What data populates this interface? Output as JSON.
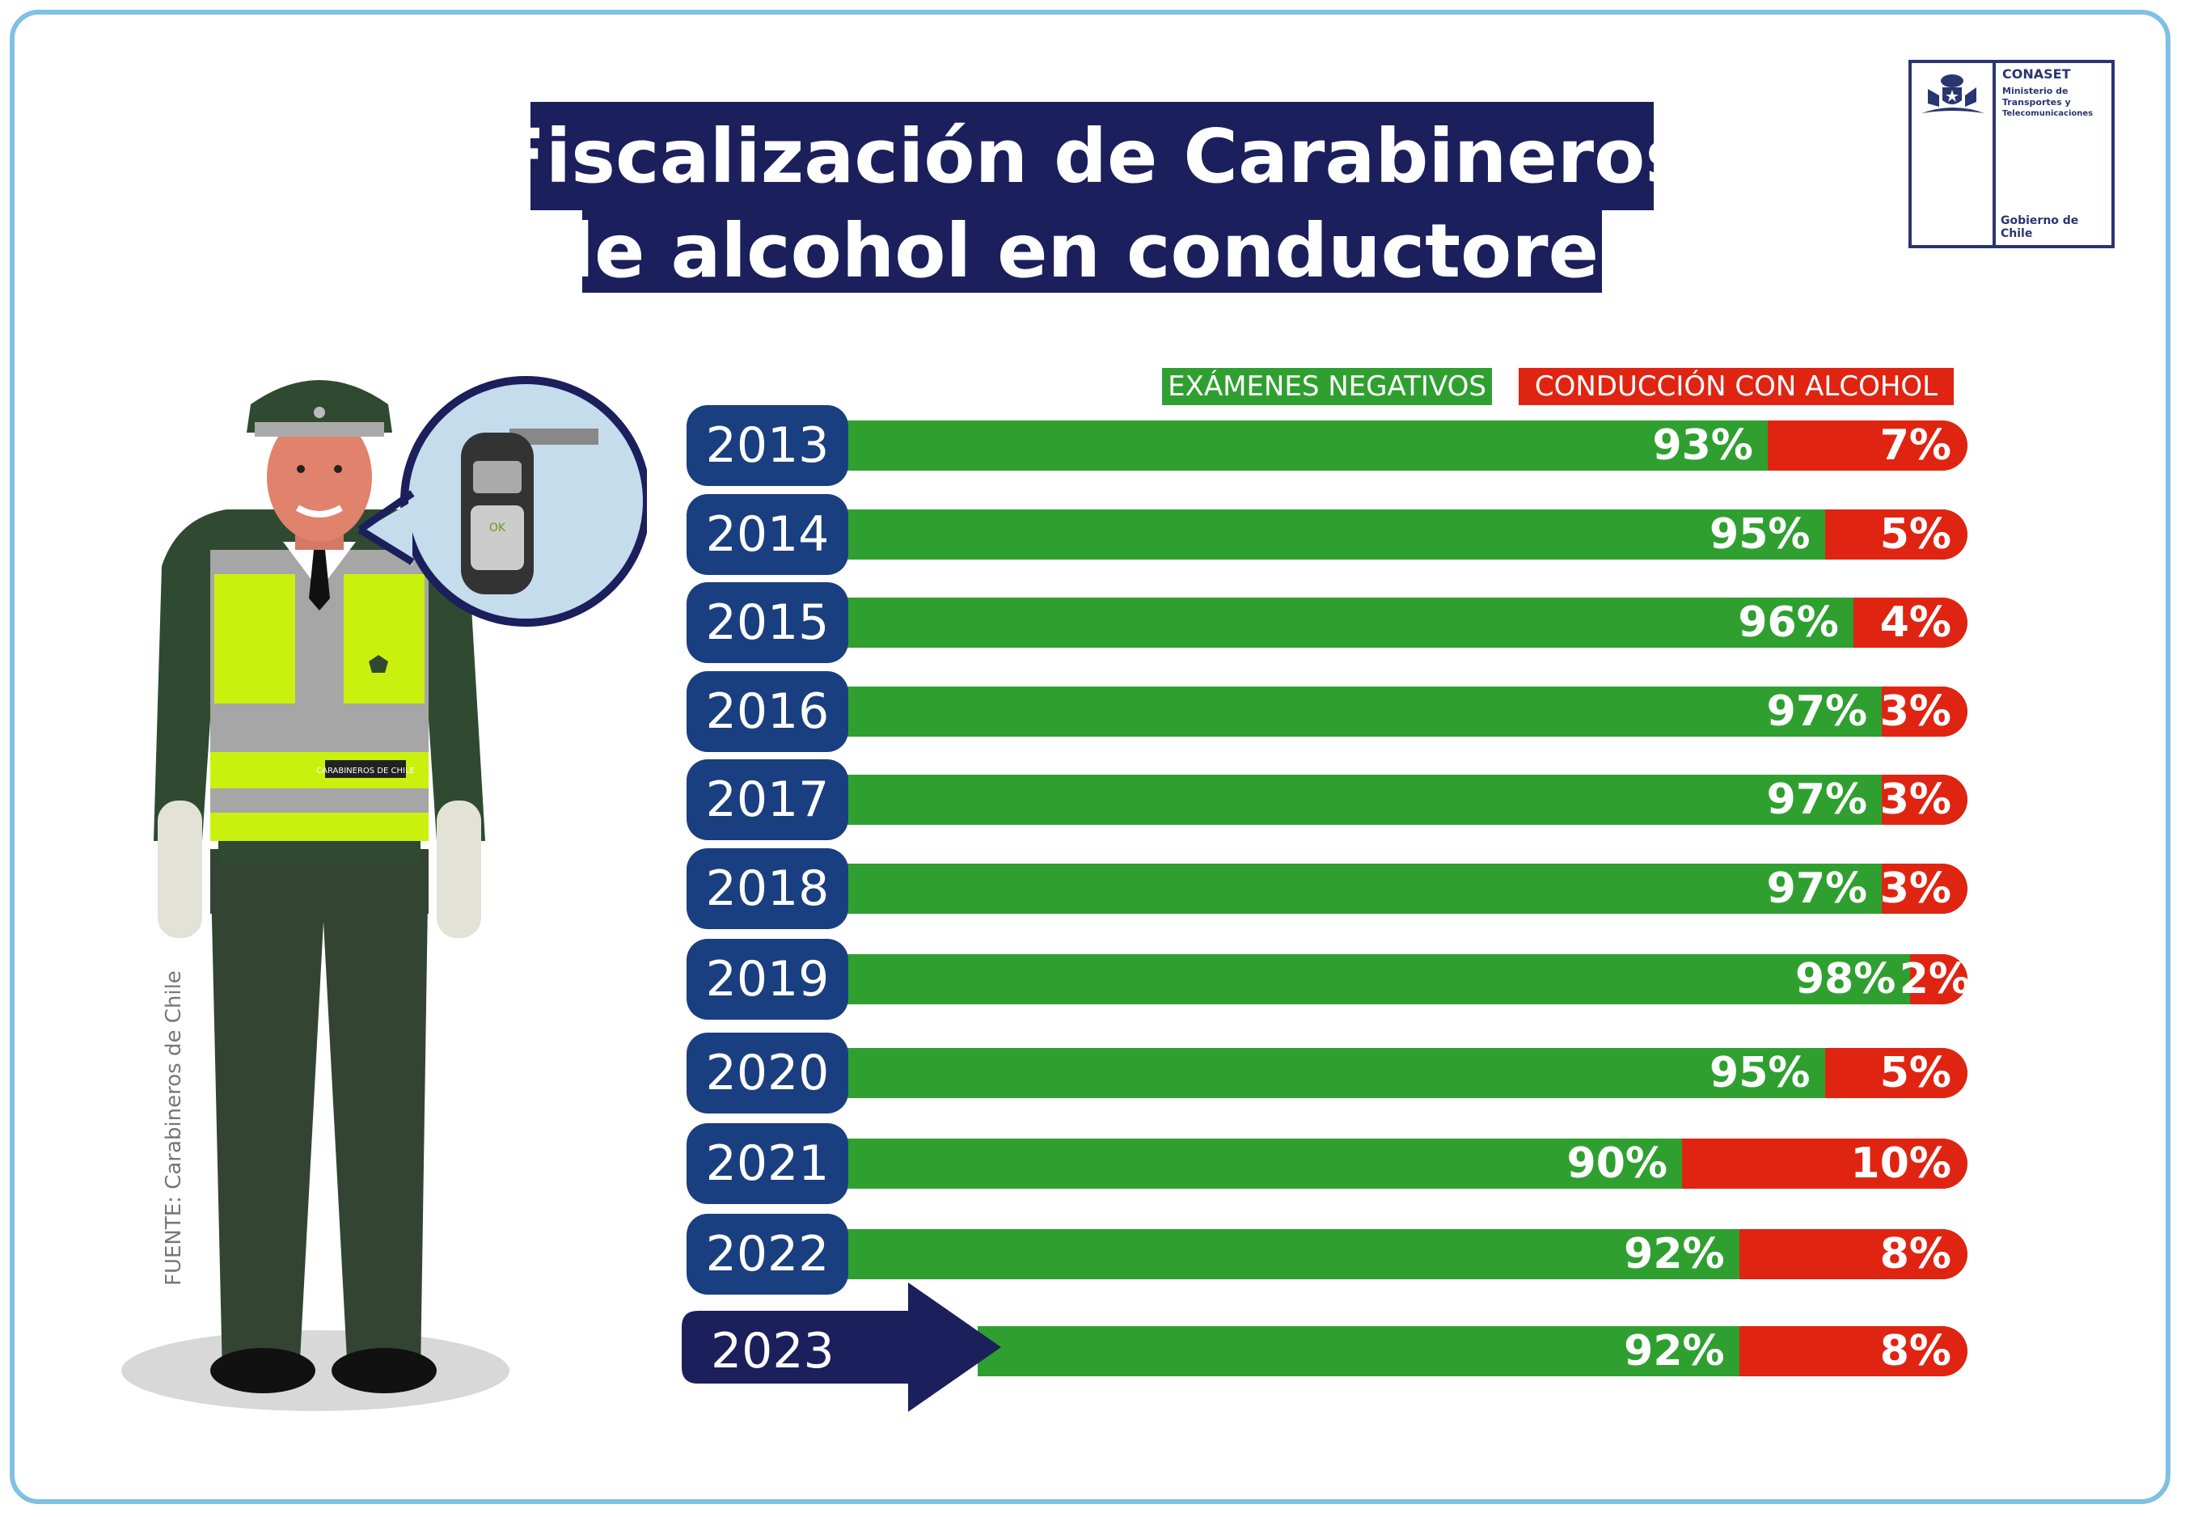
{
  "title": {
    "line1": "Fiscalización de Carabineros",
    "line2": "de alcohol en conductores"
  },
  "logo": {
    "name": "CONASET",
    "ministry_1": "Ministerio de",
    "ministry_2": "Transportes y",
    "ministry_3": "Telecomunicaciones",
    "government": "Gobierno de Chile"
  },
  "source": "FUENTE: Carabineros de Chile",
  "illustration": {
    "vest_badge": "CARABINEROS DE CHILE",
    "device_button": "OK"
  },
  "colors": {
    "negative": "#2fa030",
    "alcohol": "#e02412",
    "year": "#1a3f80",
    "title": "#1b1f5c"
  },
  "chart_data": {
    "type": "bar",
    "stacked": true,
    "orientation": "horizontal",
    "categories": [
      "2013",
      "2014",
      "2015",
      "2016",
      "2017",
      "2018",
      "2019",
      "2020",
      "2021",
      "2022",
      "2023"
    ],
    "series": [
      {
        "name": "EXÁMENES NEGATIVOS",
        "values": [
          93,
          95,
          96,
          97,
          97,
          97,
          98,
          95,
          90,
          92,
          92
        ],
        "labels": [
          "93%",
          "95%",
          "96%",
          "97%",
          "97%",
          "97%",
          "98%",
          "95%",
          "90%",
          "92%",
          "92%"
        ]
      },
      {
        "name": "CONDUCCIÓN CON ALCOHOL",
        "values": [
          7,
          5,
          4,
          3,
          3,
          3,
          2,
          5,
          10,
          8,
          8
        ],
        "labels": [
          "7%",
          "5%",
          "4%",
          "3%",
          "3%",
          "3%",
          "2%",
          "5%",
          "10%",
          "8%",
          "8%"
        ]
      }
    ],
    "legend": "top-right",
    "highlighted": "2023"
  }
}
